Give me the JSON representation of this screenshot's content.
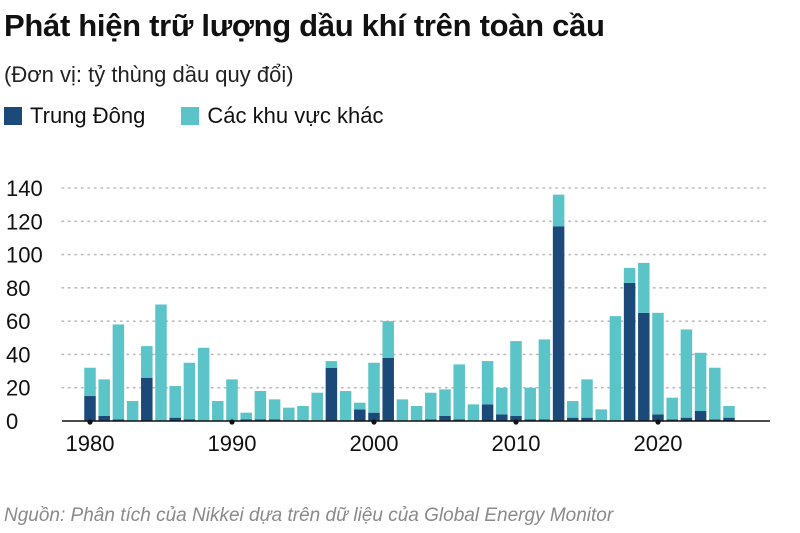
{
  "title": "Phát hiện trữ lượng dầu khí trên toàn cầu",
  "subtitle": "(Đơn vị: tỷ thùng dầu quy đổi)",
  "source": "Nguồn: Phân tích của Nikkei dựa trên dữ liệu của Global Energy Monitor",
  "colors": {
    "middle_east": "#1b4a7a",
    "other": "#5bc4c9",
    "grid": "#bdbdbd"
  },
  "legend": [
    {
      "label": "Trung Đông",
      "color": "#1b4a7a"
    },
    {
      "label": "Các khu vực khác",
      "color": "#5bc4c9"
    }
  ],
  "chart_data": {
    "type": "bar",
    "stacked": true,
    "title": "Phát hiện trữ lượng dầu khí trên toàn cầu",
    "subtitle": "(Đơn vị: tỷ thùng dầu quy đổi)",
    "ylim": [
      0,
      140
    ],
    "yticks": [
      0,
      20,
      40,
      60,
      80,
      100,
      120,
      140
    ],
    "xticks": [
      1980,
      1990,
      2000,
      2010,
      2020
    ],
    "grid": "horizontal-dotted",
    "legend_position": "top-left",
    "x": [
      1980,
      1981,
      1982,
      1983,
      1984,
      1985,
      1986,
      1987,
      1988,
      1989,
      1990,
      1991,
      1992,
      1993,
      1994,
      1995,
      1996,
      1997,
      1998,
      1999,
      2000,
      2001,
      2002,
      2003,
      2004,
      2005,
      2006,
      2007,
      2008,
      2009,
      2010,
      2011,
      2012,
      2013,
      2014,
      2015,
      2016,
      2017,
      2018,
      2019,
      2020,
      2021,
      2022,
      2023,
      2024,
      2025
    ],
    "series": [
      {
        "name": "Trung Đông",
        "values": [
          15,
          3,
          1,
          0,
          26,
          0,
          2,
          1,
          0,
          0,
          0,
          1,
          1,
          1,
          0,
          0,
          0,
          32,
          0,
          7,
          5,
          38,
          0,
          0,
          1,
          3,
          1,
          0,
          10,
          4,
          3,
          1,
          1,
          117,
          2,
          2,
          0,
          0,
          83,
          65,
          4,
          1,
          2,
          6,
          1,
          2
        ]
      },
      {
        "name": "Các khu vực khác",
        "values": [
          17,
          22,
          57,
          12,
          19,
          70,
          19,
          34,
          44,
          12,
          25,
          4,
          17,
          12,
          8,
          9,
          17,
          4,
          18,
          4,
          30,
          22,
          13,
          9,
          16,
          16,
          33,
          10,
          26,
          16,
          45,
          19,
          48,
          19,
          10,
          23,
          7,
          63,
          9,
          30,
          61,
          13,
          53,
          35,
          31,
          7
        ]
      }
    ]
  }
}
